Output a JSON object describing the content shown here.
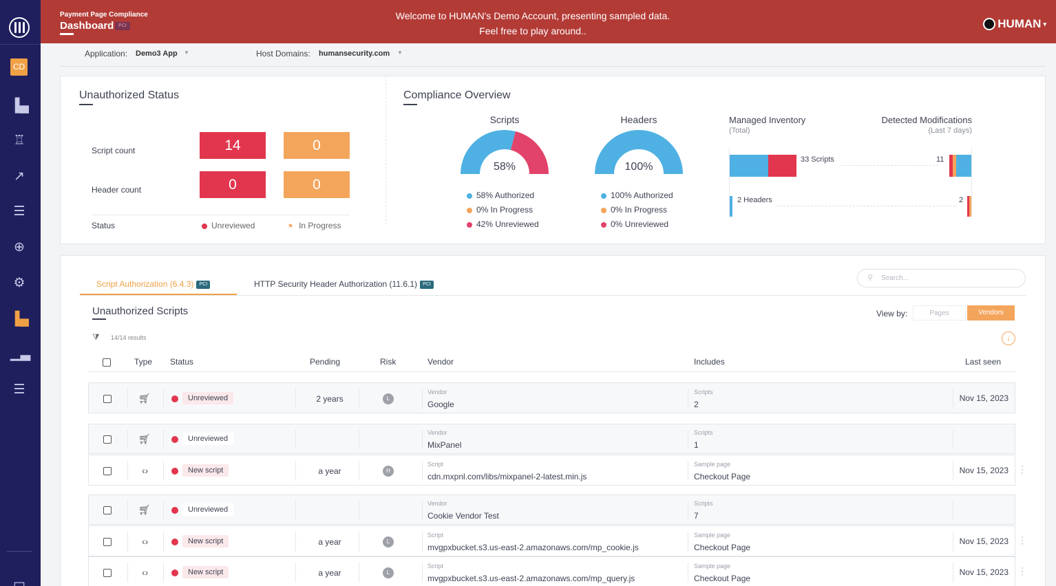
{
  "header": {
    "app_name": "Payment Page Compliance",
    "app_title": "Dashboard",
    "welcome_line1": "Welcome to HUMAN's Demo Account, presenting sampled data.",
    "welcome_line2": "Feel free to play around..",
    "brand": "HUMAN",
    "pci_mini": "PCI"
  },
  "sidebar": {
    "avatar": "CD",
    "icons": [
      "bar-chart-icon",
      "people-chart-icon",
      "trend-chart-icon",
      "list-icon",
      "globe-icon",
      "settings-shield-icon",
      "bar-chart-icon",
      "histogram-icon",
      "list-icon"
    ]
  },
  "filters": {
    "application_label": "Application:",
    "application_value": "Demo3 App",
    "host_label": "Host Domains:",
    "host_value": "humansecurity.com"
  },
  "unauthorized_status": {
    "title": "Unauthorized Status",
    "script_label": "Script count",
    "header_label": "Header count",
    "status_label": "Status",
    "script_unreviewed": "14",
    "script_in_progress": "0",
    "header_unreviewed": "0",
    "header_in_progress": "0",
    "legend_unreviewed": "Unreviewed",
    "legend_in_progress": "In Progress"
  },
  "compliance": {
    "title": "Compliance Overview",
    "scripts": {
      "title": "Scripts",
      "center": "58%",
      "authorized_pct": 58,
      "in_progress_pct": 0,
      "unreviewed_pct": 42,
      "legend": [
        "58% Authorized",
        "0% In Progress",
        "42% Unreviewed"
      ]
    },
    "headers": {
      "title": "Headers",
      "center": "100%",
      "authorized_pct": 100,
      "in_progress_pct": 0,
      "unreviewed_pct": 0,
      "legend": [
        "100% Authorized",
        "0% In Progress",
        "0% Unreviewed"
      ]
    },
    "managed_inventory": {
      "title": "Managed Inventory",
      "subtitle": "(Total)",
      "scripts_label": "33 Scripts",
      "headers_label": "2 Headers",
      "scripts_total": 33,
      "headers_total": 2
    },
    "detected_modifications": {
      "title": "Detected Modifications",
      "subtitle": "(Last 7 days)",
      "scripts_count": "11",
      "headers_count": "2"
    },
    "colors": {
      "authorized": "#4fb1e3",
      "in_progress": "#f4a55c",
      "unreviewed": "#e2436a"
    }
  },
  "tabs": {
    "script_auth": "Script Authorization (6.4.3)",
    "header_auth": "HTTP Security Header Authorization (11.6.1)",
    "pci": "PCI"
  },
  "table": {
    "search_placeholder": "Search...",
    "title": "Unauthorized Scripts",
    "view_by": "View by:",
    "view_pages": "Pages",
    "view_vendors": "Vendors",
    "results": "14/14 results",
    "columns": {
      "type": "Type",
      "status": "Status",
      "pending": "Pending",
      "risk": "Risk",
      "vendor": "Vendor",
      "includes": "Includes",
      "last_seen": "Last seen"
    },
    "rows": [
      {
        "kind": "group",
        "status": "Unreviewed",
        "pending": "2 years",
        "risk": "L",
        "vendor_label": "Vendor",
        "vendor": "Google",
        "inc_label": "Scripts",
        "includes": "2",
        "last_seen": "Nov 15, 2023"
      },
      {
        "kind": "group",
        "status": "Unreviewed",
        "pending": "",
        "risk": "",
        "vendor_label": "Vendor",
        "vendor": "MixPanel",
        "inc_label": "Scripts",
        "includes": "1",
        "last_seen": ""
      },
      {
        "kind": "script",
        "status": "New script",
        "pending": "a year",
        "risk": "H",
        "vendor_label": "Script",
        "vendor": "cdn.mxpnl.com/libs/mixpanel-2-latest.min.js",
        "inc_label": "Sample page",
        "includes": "Checkout Page",
        "last_seen": "Nov 15, 2023"
      },
      {
        "kind": "group",
        "status": "Unreviewed",
        "pending": "",
        "risk": "",
        "vendor_label": "Vendor",
        "vendor": "Cookie Vendor Test",
        "inc_label": "Scripts",
        "includes": "7",
        "last_seen": ""
      },
      {
        "kind": "script",
        "status": "New script",
        "pending": "a year",
        "risk": "L",
        "vendor_label": "Script",
        "vendor": "mvgpxbucket.s3.us-east-2.amazonaws.com/mp_cookie.js",
        "inc_label": "Sample page",
        "includes": "Checkout Page",
        "last_seen": "Nov 15, 2023"
      },
      {
        "kind": "script",
        "status": "New script",
        "pending": "a year",
        "risk": "L",
        "vendor_label": "Script",
        "vendor": "mvgpxbucket.s3.us-east-2.amazonaws.com/mp_query.js",
        "inc_label": "Sample page",
        "includes": "Checkout Page",
        "last_seen": "Nov 15, 2023"
      }
    ]
  }
}
